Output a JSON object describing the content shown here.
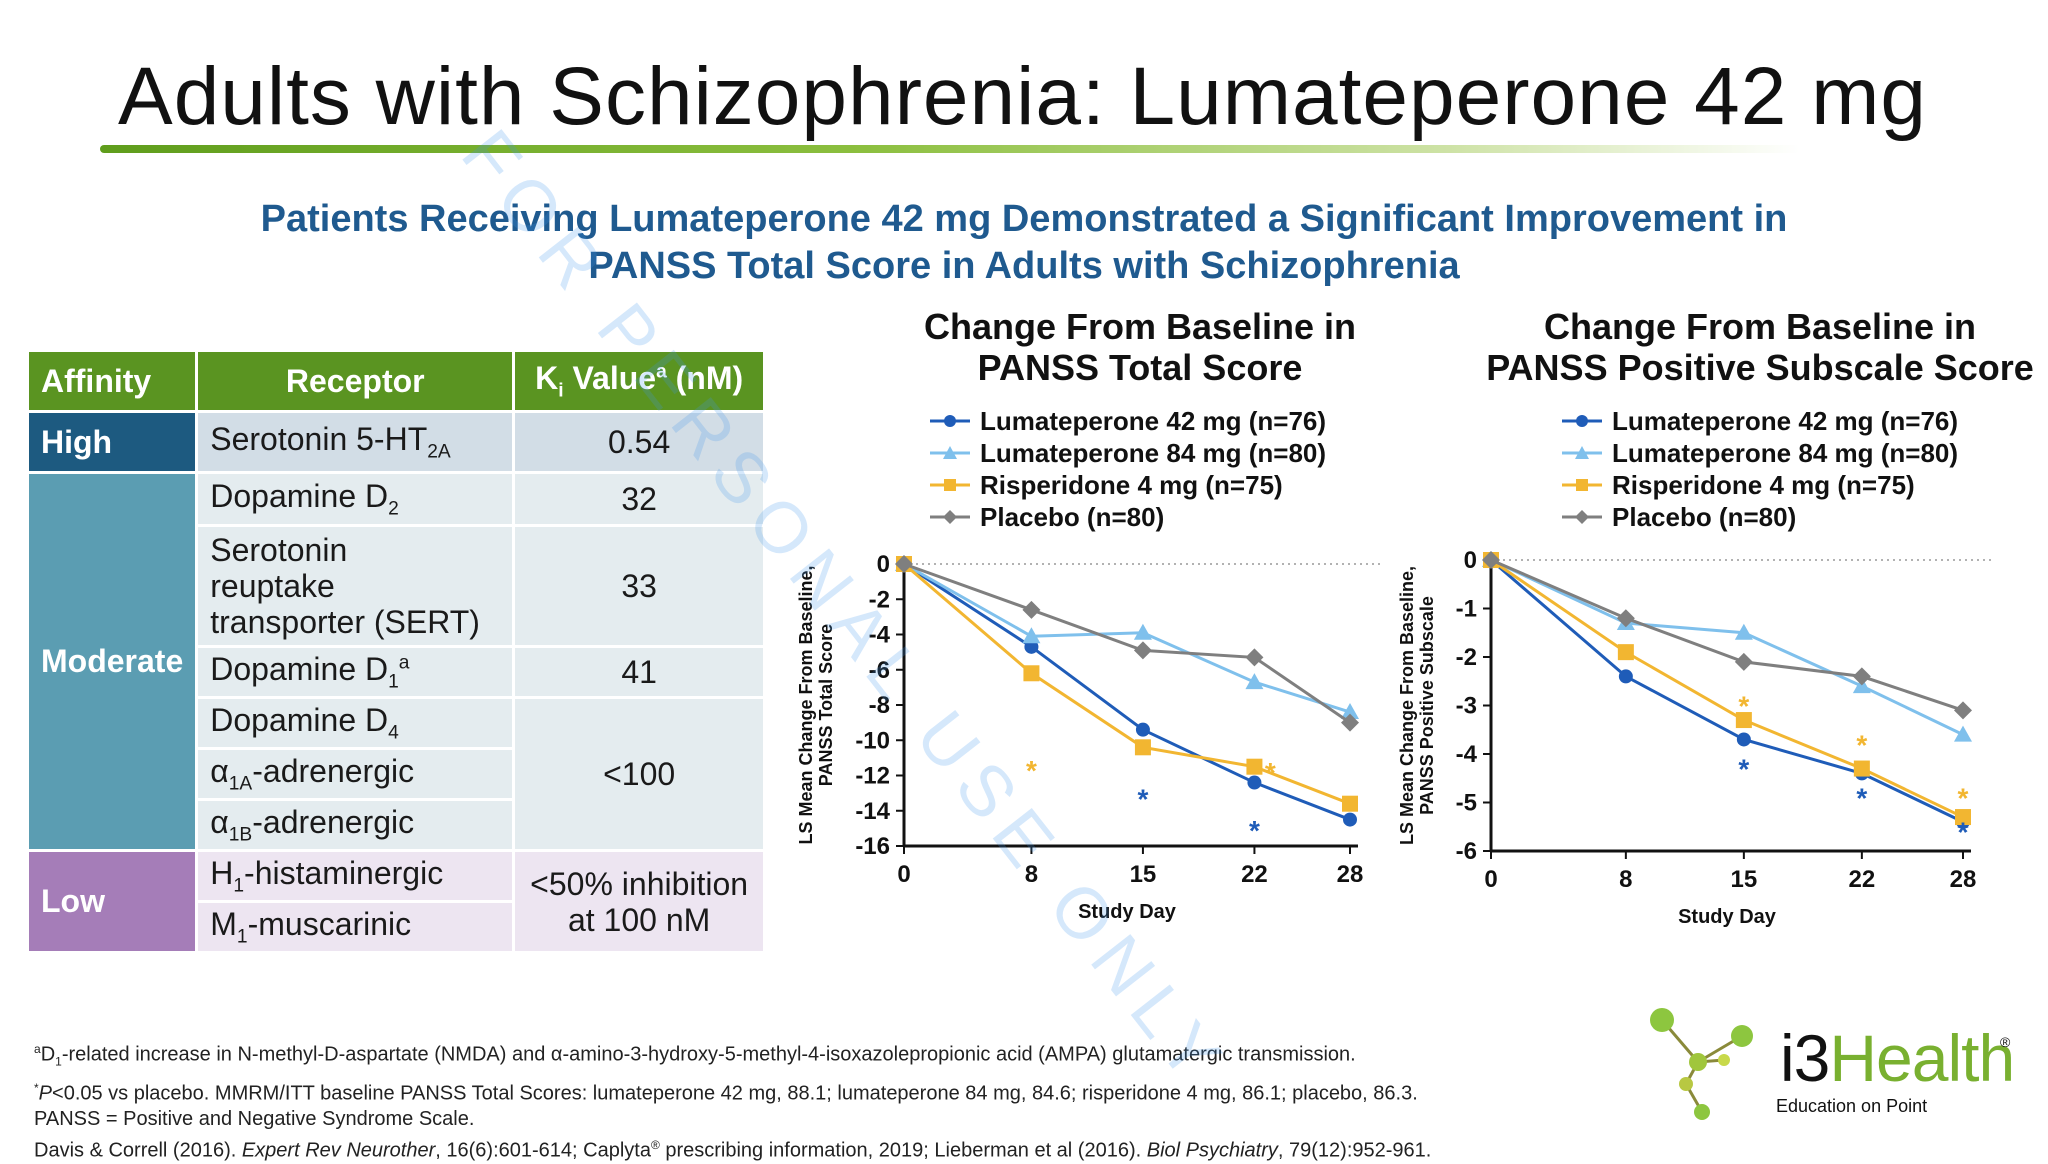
{
  "slide": {
    "title": "Adults with Schizophrenia: Lumateperone 42 mg",
    "subhead_line1": "Patients Receiving Lumateperone 42 mg Demonstrated a Significant Improvement in",
    "subhead_line2": "PANSS Total Score in Adults with Schizophrenia",
    "watermark": "FOR PERSONAL USE ONLY"
  },
  "affinity_table": {
    "headers": {
      "affinity": "Affinity",
      "receptor": "Receptor",
      "ki_prefix": "K",
      "ki_sub": "i",
      "ki_mid": " Value",
      "ki_sup": "a",
      "ki_suffix": " (nM)"
    },
    "groups": {
      "high": "High",
      "moderate": "Moderate",
      "low": "Low"
    },
    "rows": {
      "r1": {
        "pre": "Serotonin 5-HT",
        "sub": "2A",
        "post": "",
        "value": "0.54"
      },
      "r2": {
        "pre": "Dopamine D",
        "sub": "2",
        "post": "",
        "value": "32"
      },
      "r3": {
        "line1": "Serotonin",
        "line2": "reuptake",
        "line3": "transporter (SERT)",
        "value": "33"
      },
      "r4": {
        "pre": "Dopamine D",
        "sub": "1",
        "sup": "a",
        "value": "41"
      },
      "r5": {
        "pre": "Dopamine D",
        "sub": "4"
      },
      "r6": {
        "pre": "α",
        "sub": "1A",
        "post": "-adrenergic"
      },
      "r7": {
        "pre": "α",
        "sub": "1B",
        "post": "-adrenergic"
      },
      "r567_value": "<100",
      "r8": {
        "pre": "H",
        "sub": "1",
        "post": "-histaminergic"
      },
      "r9": {
        "pre": "M",
        "sub": "1",
        "post": "-muscarinic"
      },
      "r89_value_line1": "<50% inhibition",
      "r89_value_line2": "at 100 nM"
    }
  },
  "legend": {
    "s1": "Lumateperone 42 mg (n=76)",
    "s2": "Lumateperone 84 mg (n=80)",
    "s3": "Risperidone 4 mg (n=75)",
    "s4": "Placebo (n=80)"
  },
  "colors": {
    "lumateperone_42": "#1f5cb8",
    "lumateperone_84": "#7fc0ec",
    "risperidone_4": "#f2b631",
    "placebo": "#7f7f7f",
    "table_header": "#5a9421",
    "high": "#1d5a80",
    "moderate": "#5b9db2",
    "low": "#a57db8",
    "brand_green": "#79b030"
  },
  "chart_data": [
    {
      "type": "line",
      "title_line1": "Change From Baseline in",
      "title_line2": "PANSS Total Score",
      "xlabel": "Study Day",
      "ylabel_line1": "LS Mean Change From Baseline,",
      "ylabel_line2": "PANSS Total Score",
      "x": [
        0,
        8,
        15,
        22,
        28
      ],
      "xticks": [
        "0",
        "8",
        "15",
        "22",
        "28"
      ],
      "ylim": [
        -16,
        0
      ],
      "yticks": [
        "0",
        "-2",
        "-4",
        "-6",
        "-8",
        "-10",
        "-12",
        "-14",
        "-16"
      ],
      "series": [
        {
          "name": "Lumateperone 42 mg (n=76)",
          "marker": "circle",
          "values": [
            0,
            -4.7,
            -9.4,
            -12.4,
            -14.5
          ]
        },
        {
          "name": "Lumateperone 84 mg (n=80)",
          "marker": "triangle",
          "values": [
            0,
            -4.1,
            -3.9,
            -6.7,
            -8.4
          ]
        },
        {
          "name": "Risperidone 4 mg (n=75)",
          "marker": "square",
          "values": [
            0,
            -6.2,
            -10.4,
            -11.5,
            -13.6
          ]
        },
        {
          "name": "Placebo (n=80)",
          "marker": "diamond",
          "values": [
            0,
            -2.6,
            -4.9,
            -5.3,
            -9.0
          ]
        }
      ],
      "significance": [
        {
          "x": 8,
          "y": -11.7,
          "series": "Risperidone 4 mg (n=75)",
          "label": "*"
        },
        {
          "x": 15,
          "y": -13.3,
          "series": "Lumateperone 42 mg (n=76)",
          "label": "*"
        },
        {
          "x": 22,
          "y": -15.1,
          "series": "Lumateperone 42 mg (n=76)",
          "label": "*"
        },
        {
          "x": 23,
          "y": -11.8,
          "series": "Risperidone 4 mg (n=75)",
          "label": "*"
        }
      ]
    },
    {
      "type": "line",
      "title_line1": "Change From Baseline in",
      "title_line2": "PANSS Positive Subscale Score",
      "xlabel": "Study Day",
      "ylabel_line1": "LS Mean Change From Baseline,",
      "ylabel_line2": "PANSS Positive Subscale",
      "x": [
        0,
        8,
        15,
        22,
        28
      ],
      "xticks": [
        "0",
        "8",
        "15",
        "22",
        "28"
      ],
      "ylim": [
        -6,
        0
      ],
      "yticks": [
        "0",
        "-1",
        "-2",
        "-3",
        "-4",
        "-5",
        "-6"
      ],
      "series": [
        {
          "name": "Lumateperone 42 mg (n=76)",
          "marker": "circle",
          "values": [
            0,
            -2.4,
            -3.7,
            -4.4,
            -5.4
          ]
        },
        {
          "name": "Lumateperone 84 mg (n=80)",
          "marker": "triangle",
          "values": [
            0,
            -1.3,
            -1.5,
            -2.6,
            -3.6
          ]
        },
        {
          "name": "Risperidone 4 mg (n=75)",
          "marker": "square",
          "values": [
            0,
            -1.9,
            -3.3,
            -4.3,
            -5.3
          ]
        },
        {
          "name": "Placebo (n=80)",
          "marker": "diamond",
          "values": [
            0,
            -1.2,
            -2.1,
            -2.4,
            -3.1
          ]
        }
      ],
      "significance": [
        {
          "x": 15,
          "y": -4.3,
          "series": "Lumateperone 42 mg (n=76)",
          "label": "*"
        },
        {
          "x": 15,
          "y": -3.0,
          "series": "Risperidone 4 mg (n=75)",
          "label": "*"
        },
        {
          "x": 22,
          "y": -4.9,
          "series": "Lumateperone 42 mg (n=76)",
          "label": "*"
        },
        {
          "x": 22,
          "y": -3.8,
          "series": "Risperidone 4 mg (n=75)",
          "label": "*"
        },
        {
          "x": 28,
          "y": -5.6,
          "series": "Lumateperone 42 mg (n=76)",
          "label": "*"
        },
        {
          "x": 28,
          "y": -4.9,
          "series": "Risperidone 4 mg (n=75)",
          "label": "*"
        }
      ]
    }
  ],
  "footnotes": {
    "f1_sup": "a",
    "f1_d": "D",
    "f1_sub": "1",
    "f1_text": "-related increase in N-methyl-D-aspartate (NMDA) and α-amino-3-hydroxy-5-methyl-4-isoxazolepropionic acid (AMPA) glutamatergic transmission.",
    "f2_sup": "*",
    "f2_p": "P",
    "f2_text": "<0.05 vs placebo. MMRM/ITT baseline PANSS Total Scores: lumateperone 42 mg, 88.1; lumateperone 84 mg, 84.6; risperidone 4 mg, 86.1; placebo, 86.3.",
    "f3": "PANSS = Positive and Negative Syndrome Scale.",
    "f4_a": "Davis & Correll (2016). ",
    "f4_b": "Expert Rev Neurother",
    "f4_c": ", 16(6):601-614; Caplyta",
    "f4_reg": "®",
    "f4_d": " prescribing information, 2019; Lieberman et al (2016). ",
    "f4_e": "Biol Psychiatry",
    "f4_f": ", 79(12):952-961."
  },
  "logo": {
    "word_i3": "i3",
    "word_health": "Health",
    "reg": "®",
    "tagline": "Education on Point"
  }
}
